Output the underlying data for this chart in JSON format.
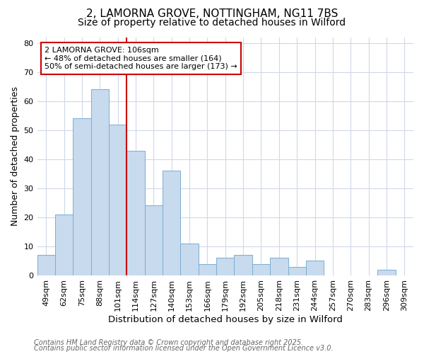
{
  "title_line1": "2, LAMORNA GROVE, NOTTINGHAM, NG11 7BS",
  "title_line2": "Size of property relative to detached houses in Wilford",
  "xlabel": "Distribution of detached houses by size in Wilford",
  "ylabel": "Number of detached properties",
  "categories": [
    "49sqm",
    "62sqm",
    "75sqm",
    "88sqm",
    "101sqm",
    "114sqm",
    "127sqm",
    "140sqm",
    "153sqm",
    "166sqm",
    "179sqm",
    "192sqm",
    "205sqm",
    "218sqm",
    "231sqm",
    "244sqm",
    "257sqm",
    "270sqm",
    "283sqm",
    "296sqm",
    "309sqm"
  ],
  "values": [
    7,
    21,
    54,
    64,
    52,
    43,
    24,
    36,
    11,
    4,
    6,
    7,
    4,
    6,
    3,
    5,
    0,
    0,
    0,
    2,
    0
  ],
  "bar_color": "#c8daee",
  "bar_edgecolor": "#7aaed0",
  "red_line_x": 4.5,
  "red_line_color": "#cc0000",
  "annotation_text": "2 LAMORNA GROVE: 106sqm\n← 48% of detached houses are smaller (164)\n50% of semi-detached houses are larger (173) →",
  "annotation_box_facecolor": "#ffffff",
  "annotation_box_edgecolor": "#cc0000",
  "ylim": [
    0,
    82
  ],
  "yticks": [
    0,
    10,
    20,
    30,
    40,
    50,
    60,
    70,
    80
  ],
  "background_color": "#ffffff",
  "plot_bg_color": "#ffffff",
  "grid_color": "#d0d8e8",
  "footer_line1": "Contains HM Land Registry data © Crown copyright and database right 2025.",
  "footer_line2": "Contains public sector information licensed under the Open Government Licence v3.0.",
  "title_fontsize": 11,
  "subtitle_fontsize": 10,
  "xlabel_fontsize": 9.5,
  "ylabel_fontsize": 9,
  "tick_fontsize": 8,
  "annotation_fontsize": 8,
  "footer_fontsize": 7
}
